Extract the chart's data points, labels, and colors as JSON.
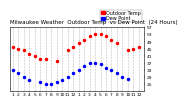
{
  "title": "Milwaukee Weather  Outdoor Temp",
  "title2": "vs Dew Point",
  "title3": "(24 Hours)",
  "legend_temp": "Outdoor Temp",
  "legend_dew": "Dew Point",
  "temp_color": "#ff0000",
  "dew_color": "#0000ff",
  "bg_color": "#ffffff",
  "plot_bg": "#ffffff",
  "ylim": [
    21,
    57
  ],
  "yticks": [
    25,
    29,
    33,
    37,
    41,
    45,
    49,
    53,
    57
  ],
  "xlim": [
    -0.5,
    24
  ],
  "xtick_labels": [
    "1",
    "2",
    "3",
    "4",
    "5",
    "6",
    "7",
    "8",
    "9",
    "10",
    "11",
    "12",
    "1",
    "2",
    "3",
    "4",
    "5",
    "6",
    "7",
    "8",
    "9",
    "10",
    "11",
    "12"
  ],
  "grid_color": "#bbbbbb",
  "temp_x": [
    0,
    1,
    2,
    3,
    4,
    5,
    6,
    8,
    10,
    11,
    12,
    13,
    14,
    15,
    16,
    17,
    18,
    19,
    21,
    22,
    23
  ],
  "temp_y": [
    46,
    45,
    44,
    42,
    41,
    39,
    39,
    38,
    44,
    46,
    48,
    50,
    52,
    53,
    53,
    52,
    50,
    48,
    44,
    45,
    46
  ],
  "dew_x": [
    0,
    1,
    2,
    3,
    5,
    6,
    7,
    8,
    9,
    10,
    11,
    12,
    13,
    14,
    15,
    16,
    17,
    18,
    19,
    20,
    21
  ],
  "dew_y": [
    33,
    31,
    29,
    27,
    26,
    25,
    25,
    26,
    27,
    29,
    31,
    33,
    35,
    37,
    37,
    36,
    34,
    33,
    31,
    29,
    28
  ],
  "marker_size": 1.5,
  "title_fontsize": 4.0,
  "tick_fontsize": 3.2,
  "legend_fontsize": 3.5
}
